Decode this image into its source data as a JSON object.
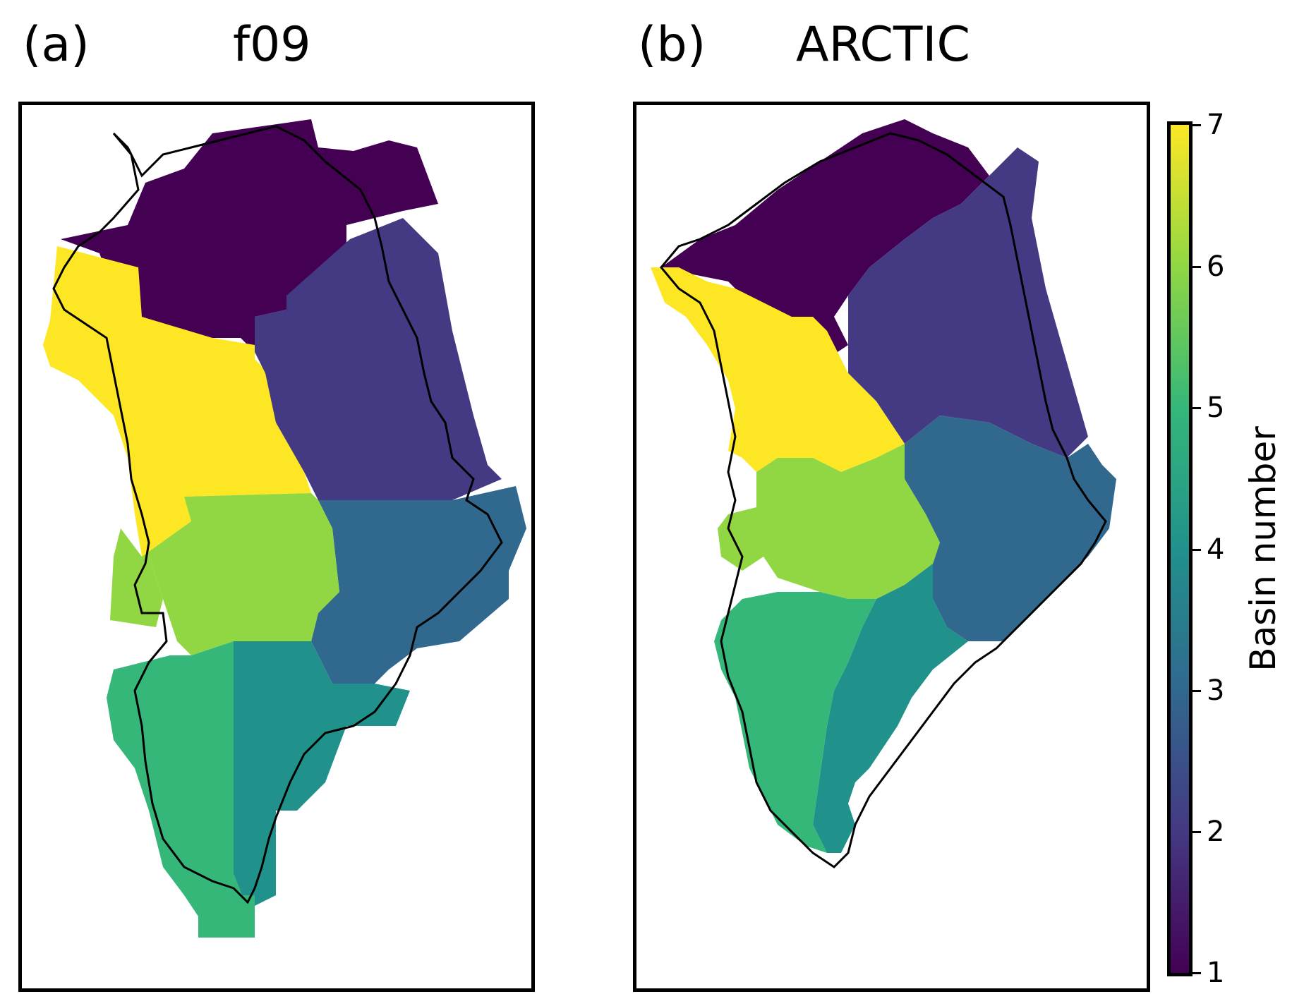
{
  "panels": [
    {
      "tag": "(a)",
      "title": "f09"
    },
    {
      "tag": "(b)",
      "title": "ARCTIC"
    }
  ],
  "colorbar": {
    "label": "Basin number",
    "ticks": [
      "1",
      "2",
      "3",
      "4",
      "5",
      "6",
      "7"
    ],
    "range": [
      1,
      7
    ],
    "colormap": "viridis"
  },
  "basin_colors": {
    "1": "#440154",
    "2": "#443983",
    "3": "#31688e",
    "4": "#21918c",
    "5": "#35b779",
    "6": "#90d743",
    "7": "#fde725"
  },
  "coastline_color": "#000000"
}
